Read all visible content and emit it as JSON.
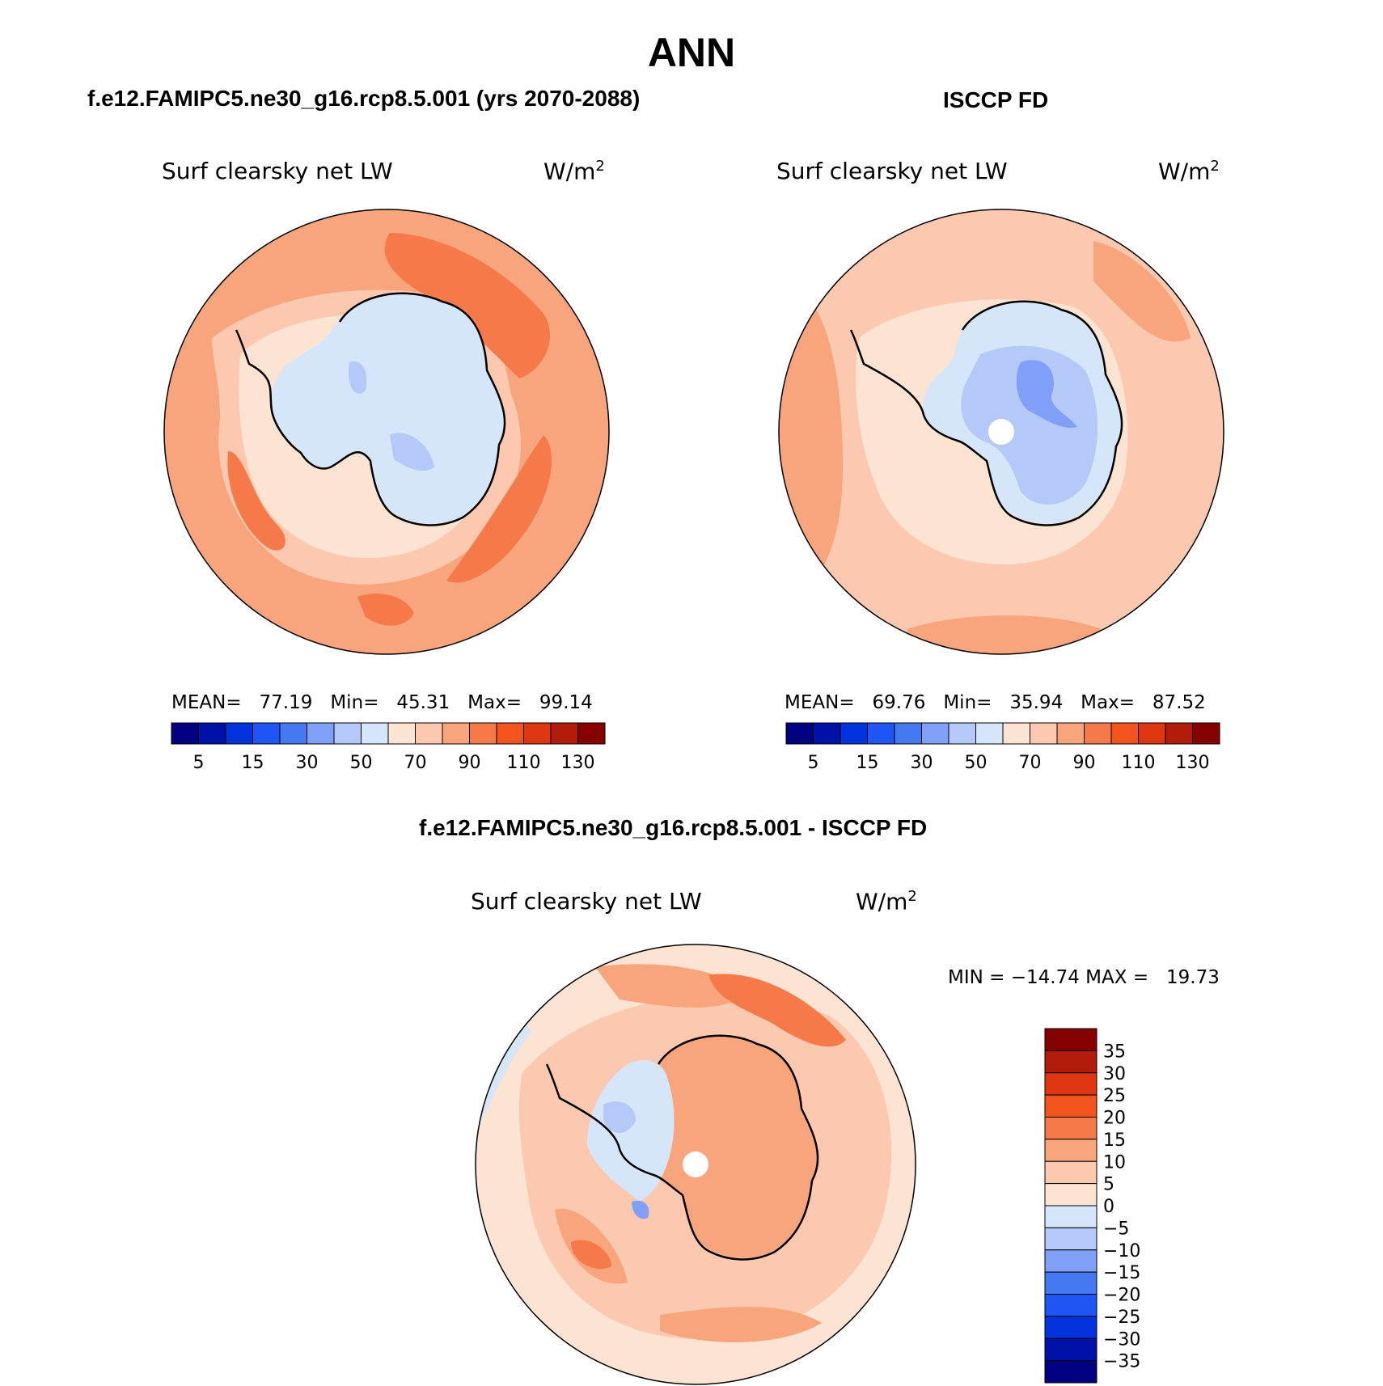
{
  "page": {
    "season": "ANN"
  },
  "panels": [
    {
      "id": "model",
      "case_title": "f.e12.FAMIPC5.ne30_g16.rcp8.5.001 (yrs 2070-2088)",
      "variable_label": "Surf clearsky net LW",
      "units_base": "W/m",
      "units_exp": "2",
      "stats": {
        "mean_label": "MEAN=",
        "mean": "77.19",
        "min_label": "Min=",
        "min": "45.31",
        "max_label": "Max=",
        "max": "99.14"
      }
    },
    {
      "id": "obs",
      "case_title": "ISCCP FD",
      "variable_label": "Surf clearsky net LW",
      "units_base": "W/m",
      "units_exp": "2",
      "stats": {
        "mean_label": "MEAN=",
        "mean": "69.76",
        "min_label": "Min=",
        "min": "35.94",
        "max_label": "Max=",
        "max": "87.52"
      }
    },
    {
      "id": "diff",
      "case_title": "f.e12.FAMIPC5.ne30_g16.rcp8.5.001 - ISCCP FD",
      "variable_label": "Surf clearsky net LW",
      "units_base": "W/m",
      "units_exp": "2",
      "stats": {
        "min_label": "MIN =",
        "min": "−14.74",
        "max_label": "MAX =",
        "max": "19.73"
      }
    }
  ],
  "colorbars": {
    "absolute": {
      "colors": [
        "#000080",
        "#0011a8",
        "#0033dd",
        "#1f55f5",
        "#4479f2",
        "#809ff7",
        "#b4c9f8",
        "#d6e6fa",
        "#fde3d2",
        "#fcc9b0",
        "#f8a47c",
        "#f67a49",
        "#f2531f",
        "#de3611",
        "#b31b0b",
        "#870000"
      ],
      "tick_labels": [
        "5",
        "15",
        "30",
        "50",
        "70",
        "90",
        "110",
        "130"
      ]
    },
    "difference": {
      "colors": [
        "#000080",
        "#0011a8",
        "#0033dd",
        "#1f55f5",
        "#4479f2",
        "#809ff7",
        "#b4c9f8",
        "#d6e6fa",
        "#fde3d2",
        "#fcc9b0",
        "#f8a47c",
        "#f67a49",
        "#f2531f",
        "#de3611",
        "#b31b0b",
        "#870000"
      ],
      "tick_labels": [
        "35",
        "30",
        "25",
        "20",
        "15",
        "10",
        "5",
        "0",
        "−5",
        "−10",
        "−15",
        "−20",
        "−25",
        "−30",
        "−35"
      ]
    }
  },
  "map_colors": {
    "ocean_base": "#fcc9b0",
    "ocean_light": "#fde3d2",
    "ocean_mid": "#f8a47c",
    "ocean_strong": "#f67a49",
    "ice_light": "#d6e6fa",
    "ice_mid": "#b4c9f8",
    "ice_strong": "#809ff7",
    "coast": "#000000",
    "pole_mask": "#ffffff"
  }
}
